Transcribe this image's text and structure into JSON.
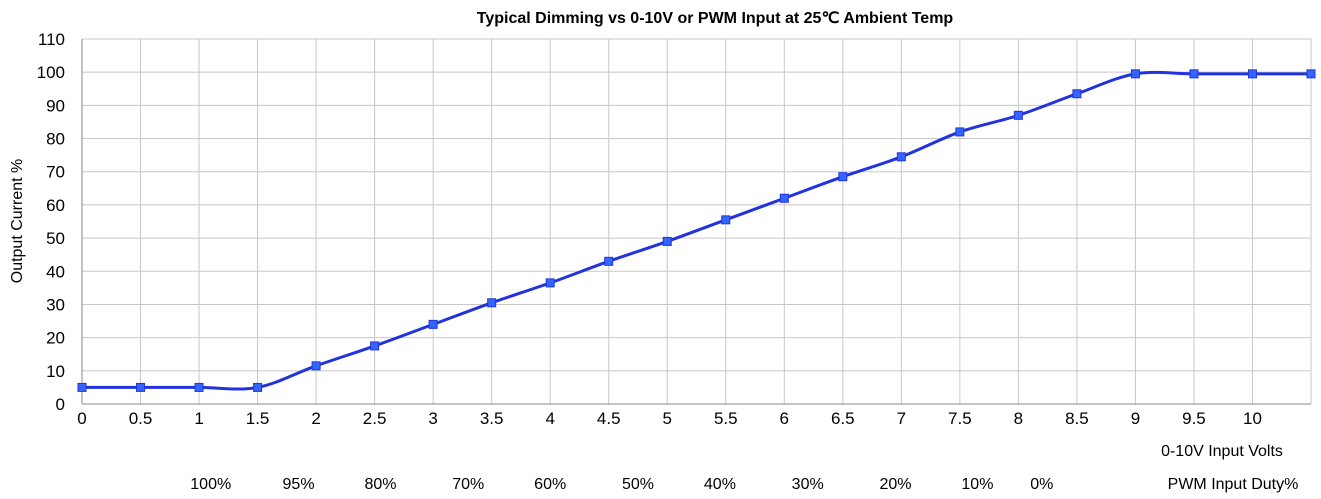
{
  "chart_data": {
    "type": "line",
    "title": "Typical Dimming vs 0-10V or PWM Input at 25℃ Ambient Temp",
    "ylabel": "Output Current %",
    "xlabel": "0-10V Input Volts",
    "pwm_label": "PWM Input Duty%",
    "ylim": [
      0,
      110
    ],
    "xlim": [
      0,
      10.5
    ],
    "y_ticks": [
      0,
      10,
      20,
      30,
      40,
      50,
      60,
      70,
      80,
      90,
      100,
      110
    ],
    "x_ticks": [
      "0",
      "0.5",
      "1",
      "1.5",
      "2",
      "2.5",
      "3",
      "3.5",
      "4",
      "4.5",
      "5",
      "5.5",
      "6",
      "6.5",
      "7",
      "7.5",
      "8",
      "8.5",
      "9",
      "9.5",
      "10"
    ],
    "pwm_ticks": [
      {
        "label": "100%",
        "x": 1.1
      },
      {
        "label": "95%",
        "x": 1.85
      },
      {
        "label": "80%",
        "x": 2.55
      },
      {
        "label": "70%",
        "x": 3.3
      },
      {
        "label": "60%",
        "x": 4.0
      },
      {
        "label": "50%",
        "x": 4.75
      },
      {
        "label": "40%",
        "x": 5.45
      },
      {
        "label": "30%",
        "x": 6.2
      },
      {
        "label": "20%",
        "x": 6.95
      },
      {
        "label": "10%",
        "x": 7.65
      },
      {
        "label": "0%",
        "x": 8.2
      }
    ],
    "grid": true,
    "color": "#2233dd",
    "marker_color": "#3366ff",
    "series": [
      {
        "x": [
          0,
          0.5,
          1,
          1.5,
          2,
          2.5,
          3,
          3.5,
          4,
          4.5,
          5,
          5.5,
          6,
          6.5,
          7,
          7.5,
          8,
          8.5,
          9,
          9.5,
          10,
          10.5
        ],
        "values": [
          5,
          5,
          5,
          5,
          11.5,
          17.5,
          24,
          30.5,
          36.5,
          43,
          49,
          55.5,
          62,
          68.5,
          74.5,
          82,
          87,
          93.5,
          99.5,
          99.5,
          99.5,
          99.5
        ]
      }
    ]
  }
}
